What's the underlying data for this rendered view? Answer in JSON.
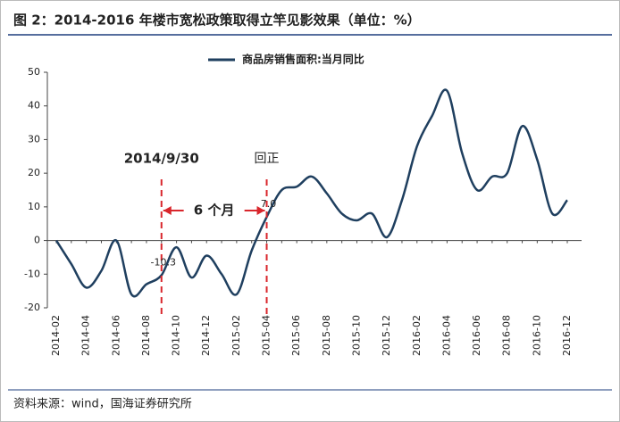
{
  "chart_data": {
    "type": "line",
    "title": "图 2：2014-2016 年楼市宽松政策取得立竿见影效果（单位：%）",
    "source": "资料来源：wind，国海证券研究所",
    "categories": [
      "2014-02",
      null,
      "2014-04",
      null,
      "2014-06",
      null,
      "2014-08",
      null,
      "2014-10",
      null,
      "2014-12",
      null,
      "2015-02",
      null,
      "2015-04",
      null,
      "2015-06",
      null,
      "2015-08",
      null,
      "2015-10",
      null,
      "2015-12",
      null,
      "2016-02",
      null,
      "2016-04",
      null,
      "2016-06",
      null,
      "2016-08",
      null,
      "2016-10",
      null,
      "2016-12"
    ],
    "series": [
      {
        "name": "商品房销售面积:当月同比",
        "color": "#1f3f5f",
        "values": [
          0,
          -7,
          -14,
          -9,
          0,
          -16,
          -13,
          -10.3,
          -2,
          -11,
          -4.5,
          -10,
          -16,
          -3,
          7.0,
          15,
          16,
          19,
          14,
          8,
          6,
          8,
          1,
          12,
          28,
          37,
          44.5,
          26,
          15,
          19,
          20,
          34,
          24,
          8,
          12
        ],
        "value_labels": [
          null,
          null,
          null,
          null,
          null,
          null,
          null,
          "-10.3",
          null,
          null,
          null,
          null,
          null,
          null,
          "7.0",
          null,
          null,
          null,
          null,
          null,
          null,
          null,
          null,
          null,
          null,
          null,
          null,
          null,
          null,
          null,
          null,
          null,
          null,
          null,
          null
        ]
      }
    ],
    "annotations": [
      "2014/9/30",
      "回正",
      "6 个月"
    ],
    "annotation_color": "#d9262c",
    "ylim": [
      -20,
      50
    ],
    "yticks": [
      -20,
      -10,
      0,
      10,
      20,
      30,
      40,
      50
    ],
    "legend": "top"
  }
}
